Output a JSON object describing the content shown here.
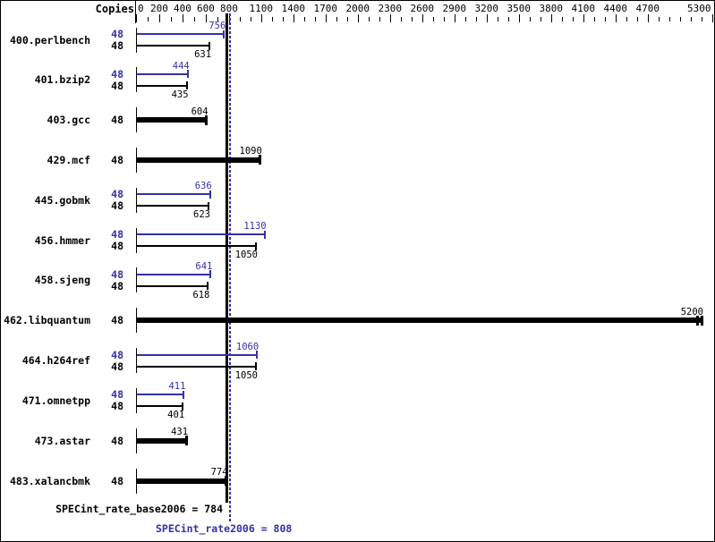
{
  "header": {
    "copies_column_label": "Copies"
  },
  "colors": {
    "peak_blue": "#3232aa",
    "base_black": "#000000",
    "background": "#ffffff"
  },
  "axis": {
    "labeled_ticks": [
      0,
      200,
      400,
      600,
      800,
      1100,
      1400,
      1700,
      2000,
      2300,
      2600,
      2900,
      3200,
      3500,
      3800,
      4100,
      4400,
      4700,
      5300
    ],
    "minor_tick_interval": 100,
    "min_value": 0,
    "max_value": 5300
  },
  "chart_data": {
    "type": "bar",
    "orientation": "horizontal",
    "title": "",
    "xlabel": "",
    "ylabel": "Copies",
    "legend_position": "none",
    "grid": false,
    "xlim": [
      0,
      5300
    ],
    "benchmarks": [
      {
        "name": "400.perlbench",
        "copies": 48,
        "peak": 756,
        "base": 631,
        "single_bar": false
      },
      {
        "name": "401.bzip2",
        "copies": 48,
        "peak": 444,
        "base": 435,
        "single_bar": false
      },
      {
        "name": "403.gcc",
        "copies": 48,
        "peak": null,
        "base": 604,
        "single_bar": true
      },
      {
        "name": "429.mcf",
        "copies": 48,
        "peak": null,
        "base": 1090,
        "single_bar": true
      },
      {
        "name": "445.gobmk",
        "copies": 48,
        "peak": 636,
        "base": 623,
        "single_bar": false
      },
      {
        "name": "456.hmmer",
        "copies": 48,
        "peak": 1130,
        "base": 1050,
        "single_bar": false
      },
      {
        "name": "458.sjeng",
        "copies": 48,
        "peak": 641,
        "base": 618,
        "single_bar": false
      },
      {
        "name": "462.libquantum",
        "copies": 48,
        "peak": null,
        "base": 5200,
        "single_bar": true,
        "double_cap": true
      },
      {
        "name": "464.h264ref",
        "copies": 48,
        "peak": 1060,
        "base": 1050,
        "single_bar": false
      },
      {
        "name": "471.omnetpp",
        "copies": 48,
        "peak": 411,
        "base": 401,
        "single_bar": false
      },
      {
        "name": "473.astar",
        "copies": 48,
        "peak": null,
        "base": 431,
        "single_bar": true
      },
      {
        "name": "483.xalancbmk",
        "copies": 48,
        "peak": null,
        "base": 774,
        "single_bar": true
      }
    ],
    "reference_lines": [
      {
        "name": "base_mean",
        "value": 784,
        "style": "solid",
        "color": "#000000"
      },
      {
        "name": "peak_mean",
        "value": 808,
        "style": "dotted",
        "color": "#3232aa"
      }
    ]
  },
  "footer": {
    "base_summary": "SPECint_rate_base2006 = 784",
    "peak_summary": "SPECint_rate2006 = 808"
  }
}
